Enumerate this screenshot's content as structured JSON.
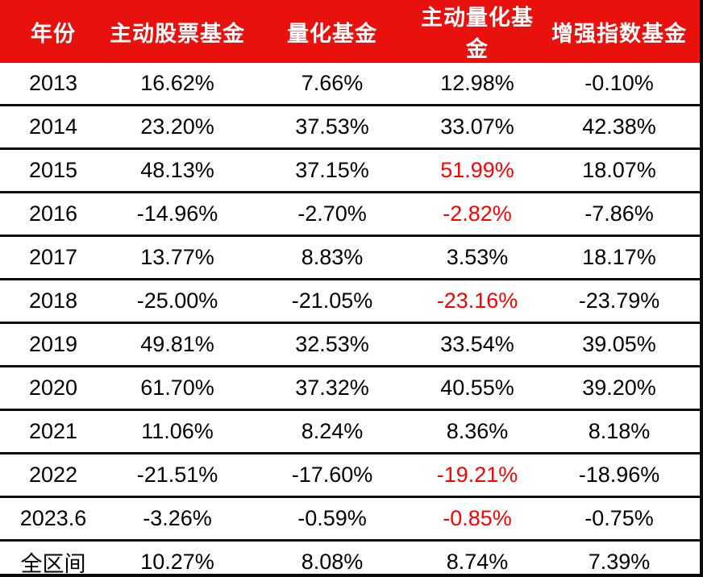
{
  "colors": {
    "header_bg": "#e8110d",
    "header_text": "#ffffff",
    "value_text": "#000000",
    "highlight_text": "#fe0000",
    "rule_black": "#0d0d0d"
  },
  "table": {
    "columns": [
      "年份",
      "主动股票基金",
      "量化基金",
      "主动量化基金",
      "增强指数基金"
    ],
    "rows": [
      {
        "cells": [
          "2013",
          "16.62%",
          "7.66%",
          "12.98%",
          "-0.10%"
        ],
        "red": []
      },
      {
        "cells": [
          "2014",
          "23.20%",
          "37.53%",
          "33.07%",
          "42.38%"
        ],
        "red": []
      },
      {
        "cells": [
          "2015",
          "48.13%",
          "37.15%",
          "51.99%",
          "18.07%"
        ],
        "red": [
          3
        ]
      },
      {
        "cells": [
          "2016",
          "-14.96%",
          "-2.70%",
          "-2.82%",
          "-7.86%"
        ],
        "red": [
          3
        ]
      },
      {
        "cells": [
          "2017",
          "13.77%",
          "8.83%",
          "3.53%",
          "18.17%"
        ],
        "red": []
      },
      {
        "cells": [
          "2018",
          "-25.00%",
          "-21.05%",
          "-23.16%",
          "-23.79%"
        ],
        "red": [
          3
        ]
      },
      {
        "cells": [
          "2019",
          "49.81%",
          "32.53%",
          "33.54%",
          "39.05%"
        ],
        "red": []
      },
      {
        "cells": [
          "2020",
          "61.70%",
          "37.32%",
          "40.55%",
          "39.20%"
        ],
        "red": []
      },
      {
        "cells": [
          "2021",
          "11.06%",
          "8.24%",
          "8.36%",
          "8.18%"
        ],
        "red": []
      },
      {
        "cells": [
          "2022",
          "-21.51%",
          "-17.60%",
          "-19.21%",
          "-18.96%"
        ],
        "red": [
          3
        ]
      },
      {
        "cells": [
          "2023.6",
          "-3.26%",
          "-0.59%",
          "-0.85%",
          "-0.75%"
        ],
        "red": [
          3
        ]
      },
      {
        "cells": [
          "全区间",
          "10.27%",
          "8.08%",
          "8.74%",
          "7.39%"
        ],
        "red": []
      }
    ]
  },
  "chart_data": {
    "type": "table",
    "title": "",
    "unit": "%",
    "categories": [
      "2013",
      "2014",
      "2015",
      "2016",
      "2017",
      "2018",
      "2019",
      "2020",
      "2021",
      "2022",
      "2023.6",
      "全区间"
    ],
    "series": [
      {
        "name": "主动股票基金",
        "values": [
          16.62,
          23.2,
          48.13,
          -14.96,
          13.77,
          -25.0,
          49.81,
          61.7,
          11.06,
          -21.51,
          -3.26,
          10.27
        ]
      },
      {
        "name": "量化基金",
        "values": [
          7.66,
          37.53,
          37.15,
          -2.7,
          8.83,
          -21.05,
          32.53,
          37.32,
          8.24,
          -17.6,
          -0.59,
          8.08
        ]
      },
      {
        "name": "主动量化基金",
        "values": [
          12.98,
          33.07,
          51.99,
          -2.82,
          3.53,
          -23.16,
          33.54,
          40.55,
          8.36,
          -19.21,
          -0.85,
          8.74
        ]
      },
      {
        "name": "增强指数基金",
        "values": [
          -0.1,
          42.38,
          18.07,
          -7.86,
          18.17,
          -23.79,
          39.05,
          39.2,
          8.18,
          -18.96,
          -0.75,
          7.39
        ]
      }
    ],
    "highlight": {
      "color": "#fe0000",
      "column": "主动量化基金",
      "rows": [
        "2015",
        "2016",
        "2018",
        "2022",
        "2023.6"
      ]
    },
    "layout": {
      "header_style": "red-bar-white-text",
      "row_rules": "black",
      "bottom_rule": "double"
    }
  }
}
